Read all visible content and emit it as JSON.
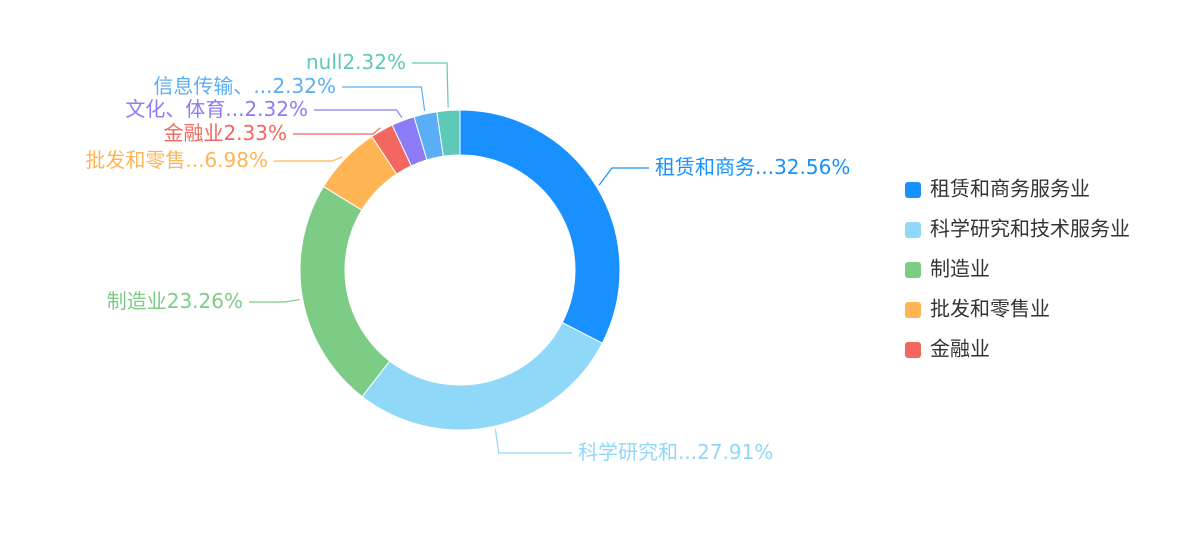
{
  "chart_data": {
    "type": "donut",
    "label_names": [
      "租赁和商务...",
      "科学研究和...",
      "制造业",
      "批发和零售...",
      "金融业",
      "文化、体育...",
      "信息传输、...",
      "null"
    ],
    "values": [
      32.56,
      27.91,
      23.26,
      6.98,
      2.33,
      2.32,
      2.32,
      2.32
    ],
    "value_labels": [
      "32.56%",
      "27.91%",
      "23.26%",
      "6.98%",
      "2.33%",
      "2.32%",
      "2.32%",
      "2.32%"
    ],
    "colors": [
      "#1890ff",
      "#8fd8f8",
      "#7ccc86",
      "#ffb554",
      "#f2675f",
      "#8b7cf6",
      "#5aaef5",
      "#5ec9b8"
    ],
    "legend": [
      "租赁和商务服务业",
      "科学研究和技术服务业",
      "制造业",
      "批发和零售业",
      "金融业"
    ]
  }
}
